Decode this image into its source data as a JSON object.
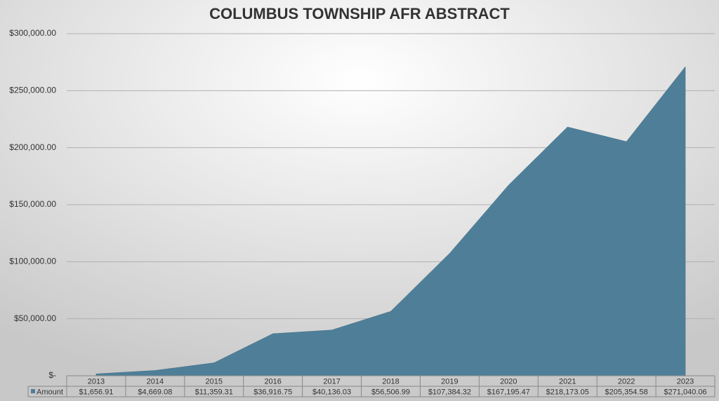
{
  "chart_data": {
    "type": "area",
    "title": "COLUMBUS TOWNSHIP AFR ABSTRACT",
    "categories": [
      "2013",
      "2014",
      "2015",
      "2016",
      "2017",
      "2018",
      "2019",
      "2020",
      "2021",
      "2022",
      "2023"
    ],
    "series": [
      {
        "name": "Amount",
        "color": "#4f7f98",
        "values": [
          1656.91,
          4669.08,
          11359.31,
          36916.75,
          40136.03,
          56506.99,
          107384.32,
          167195.47,
          218173.05,
          205354.58,
          271040.06
        ],
        "value_labels": [
          "$1,656.91",
          "$4,669.08",
          "$11,359.31",
          "$36,916.75",
          "$40,136.03",
          "$56,506.99",
          "$107,384.32",
          "$167,195.47",
          "$218,173.05",
          "$205,354.58",
          "$271,040.06"
        ]
      }
    ],
    "ylim": [
      0,
      300000
    ],
    "yticks": [
      {
        "value": 0,
        "label": "$-"
      },
      {
        "value": 50000,
        "label": "$50,000.00"
      },
      {
        "value": 100000,
        "label": "$100,000.00"
      },
      {
        "value": 150000,
        "label": "$150,000.00"
      },
      {
        "value": 200000,
        "label": "$200,000.00"
      },
      {
        "value": 250000,
        "label": "$250,000.00"
      },
      {
        "value": 300000,
        "label": "$300,000.00"
      }
    ],
    "grid": true
  }
}
